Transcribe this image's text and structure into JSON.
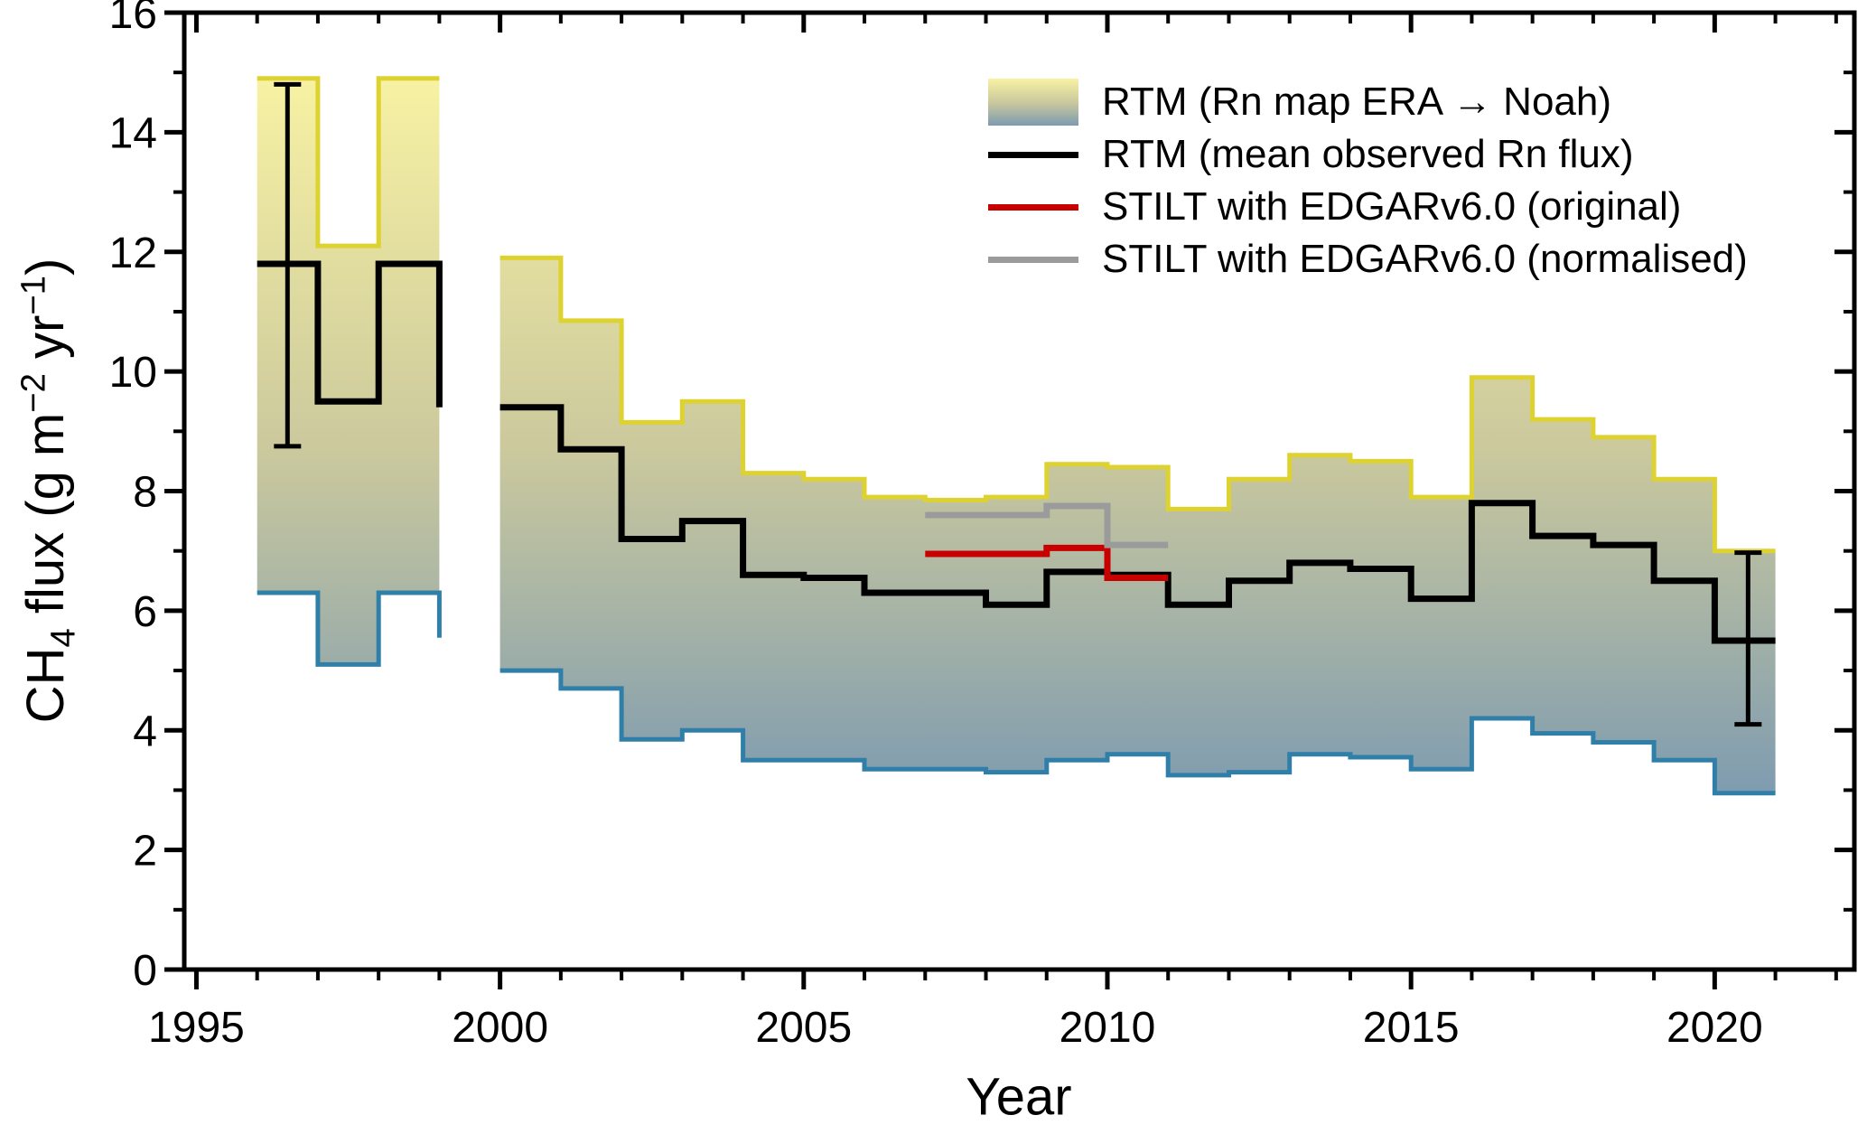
{
  "chart_data": {
    "type": "line",
    "title": "",
    "xlabel": "Year",
    "ylabel_parts": {
      "p1": "CH",
      "sub": "4",
      "p2": " flux (g m",
      "sup1": "−2",
      "p3": " yr",
      "sup2": "−1",
      "p4": ")"
    },
    "x_domain": [
      1994.8,
      2022.3
    ],
    "y_domain": [
      0,
      16
    ],
    "x_major_ticks": [
      1995,
      2000,
      2005,
      2010,
      2015,
      2020
    ],
    "x_minor_tick_step": 1,
    "y_major_ticks": [
      0,
      2,
      4,
      6,
      8,
      10,
      12,
      14,
      16
    ],
    "y_minor_tick_step": 1,
    "grid": false,
    "colors": {
      "band_upper_line": "#ddd22f",
      "band_lower_line": "#2f7fa9",
      "band_gradient_top": "#f8f2a3",
      "band_gradient_mid": "#cbc99d",
      "band_gradient_bottom": "#7e9bb0",
      "rtm_mean_line": "#000000",
      "stilt_original_line": "#c80000",
      "stilt_normalised_line": "#9b9b9b",
      "axis": "#000000"
    },
    "band_series": {
      "name": "RTM (Rn map ERA → Noah)",
      "segments": [
        {
          "years": [
            1996,
            1997,
            1998
          ],
          "end_year": 1999,
          "upper": [
            14.9,
            12.1,
            14.9
          ],
          "lower": [
            6.3,
            5.1,
            6.3
          ],
          "lower_end_value": 5.55
        },
        {
          "years": [
            2000,
            2001,
            2002,
            2003,
            2004,
            2005,
            2006,
            2007,
            2008,
            2009,
            2010,
            2011,
            2012,
            2013,
            2014,
            2015,
            2016,
            2017,
            2018,
            2019,
            2020
          ],
          "end_year": 2021,
          "upper": [
            11.9,
            10.85,
            9.15,
            9.5,
            8.3,
            8.2,
            7.9,
            7.85,
            7.9,
            8.45,
            8.4,
            7.7,
            8.2,
            8.6,
            8.5,
            7.9,
            9.9,
            9.2,
            8.9,
            8.2,
            7.0
          ],
          "lower": [
            5.0,
            4.7,
            3.85,
            4.0,
            3.5,
            3.5,
            3.35,
            3.35,
            3.3,
            3.5,
            3.6,
            3.25,
            3.3,
            3.6,
            3.55,
            3.35,
            4.2,
            3.95,
            3.8,
            3.5,
            2.95
          ]
        }
      ]
    },
    "line_series": [
      {
        "name": "RTM (mean observed Rn flux)",
        "color_key": "rtm_mean_line",
        "width": 7,
        "segments": [
          {
            "years": [
              1996,
              1997,
              1998
            ],
            "end_year": 1999,
            "values": [
              11.8,
              9.5,
              11.8
            ],
            "end_value": 9.4
          },
          {
            "years": [
              2000,
              2001,
              2002,
              2003,
              2004,
              2005,
              2006,
              2007,
              2008,
              2009,
              2010,
              2011,
              2012,
              2013,
              2014,
              2015,
              2016,
              2017,
              2018,
              2019,
              2020
            ],
            "end_year": 2021,
            "values": [
              9.4,
              8.7,
              7.2,
              7.5,
              6.6,
              6.55,
              6.3,
              6.3,
              6.1,
              6.65,
              6.6,
              6.1,
              6.5,
              6.8,
              6.7,
              6.2,
              7.8,
              7.25,
              7.1,
              6.5,
              5.5
            ]
          }
        ]
      },
      {
        "name": "STILT with EDGARv6.0 (original)",
        "color_key": "stilt_original_line",
        "width": 7,
        "segments": [
          {
            "years": [
              2007,
              2008,
              2009,
              2010
            ],
            "end_year": 2011,
            "values": [
              6.95,
              6.95,
              7.05,
              6.55
            ]
          }
        ]
      },
      {
        "name": "STILT with EDGARv6.0 (normalised)",
        "color_key": "stilt_normalised_line",
        "width": 7,
        "segments": [
          {
            "years": [
              2007,
              2008,
              2009,
              2010
            ],
            "end_year": 2011,
            "values": [
              7.6,
              7.6,
              7.75,
              7.1
            ]
          }
        ]
      }
    ],
    "error_bars": [
      {
        "x": 1996.5,
        "center": 11.8,
        "low": 8.75,
        "high": 14.8
      },
      {
        "x": 2020.55,
        "center": 5.5,
        "low": 4.1,
        "high": 6.97
      }
    ],
    "legend": {
      "items": [
        {
          "label": "RTM (Rn map ERA → Noah)",
          "swatch": "band"
        },
        {
          "label": "RTM (mean observed Rn flux)",
          "color": "#000000"
        },
        {
          "label": "STILT with EDGARv6.0 (original)",
          "color": "#c80000"
        },
        {
          "label": "STILT with EDGARv6.0 (normalised)",
          "color": "#9b9b9b"
        }
      ]
    }
  }
}
